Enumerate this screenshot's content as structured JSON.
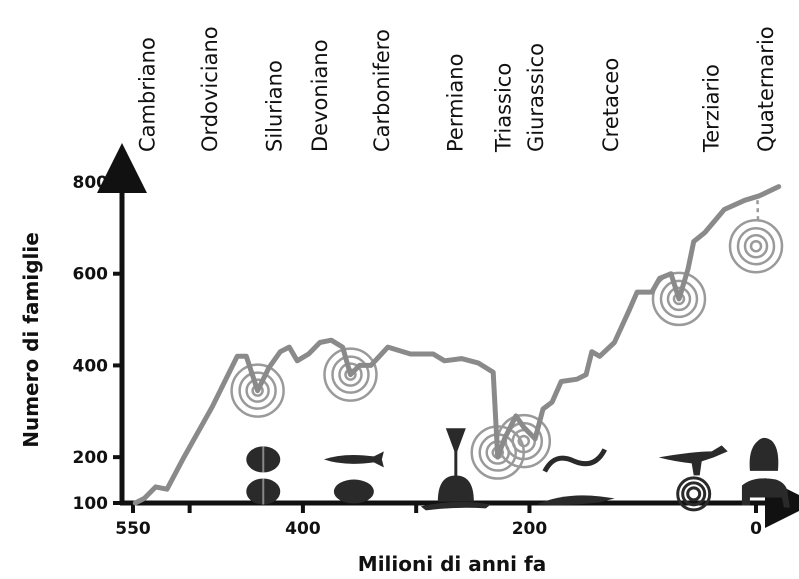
{
  "chart_data": {
    "type": "line",
    "title": "",
    "xlabel": "Milioni di anni fa",
    "ylabel": "Numero di famiglie",
    "x_reversed": true,
    "xlim": [
      560,
      -15
    ],
    "ylim": [
      100,
      830
    ],
    "x_ticks": [
      {
        "value": 550,
        "label": "550"
      },
      {
        "value": 400,
        "label": "400"
      },
      {
        "value": 200,
        "label": "200"
      },
      {
        "value": 0,
        "label": "0"
      }
    ],
    "y_ticks": [
      {
        "value": 800,
        "label": "800"
      },
      {
        "value": 600,
        "label": "600"
      },
      {
        "value": 400,
        "label": "400"
      },
      {
        "value": 200,
        "label": "200"
      },
      {
        "value": 100,
        "label": "100"
      }
    ],
    "periods": [
      {
        "name": "Cambriano",
        "at": 538
      },
      {
        "name": "Ordoviciano",
        "at": 483
      },
      {
        "name": "Siluriano",
        "at": 426
      },
      {
        "name": "Devoniano",
        "at": 386
      },
      {
        "name": "Carbonifero",
        "at": 331
      },
      {
        "name": "Permiano",
        "at": 266
      },
      {
        "name": "Triassico",
        "at": 224
      },
      {
        "name": "Giurassico",
        "at": 195
      },
      {
        "name": "Cretaceo",
        "at": 129
      },
      {
        "name": "Terziario",
        "at": 40
      },
      {
        "name": "Quaternario",
        "at": -8
      }
    ],
    "series": [
      {
        "color": "#8a8a8a",
        "points": [
          [
            548,
            100
          ],
          [
            540,
            110
          ],
          [
            530,
            135
          ],
          [
            520,
            130
          ],
          [
            505,
            200
          ],
          [
            480,
            310
          ],
          [
            458,
            420
          ],
          [
            450,
            420
          ],
          [
            440,
            345
          ],
          [
            430,
            395
          ],
          [
            420,
            430
          ],
          [
            412,
            440
          ],
          [
            405,
            410
          ],
          [
            395,
            425
          ],
          [
            385,
            450
          ],
          [
            375,
            455
          ],
          [
            365,
            440
          ],
          [
            358,
            380
          ],
          [
            350,
            400
          ],
          [
            340,
            400
          ],
          [
            325,
            440
          ],
          [
            305,
            425
          ],
          [
            285,
            425
          ],
          [
            275,
            410
          ],
          [
            260,
            415
          ],
          [
            245,
            405
          ],
          [
            232,
            385
          ],
          [
            228,
            200
          ],
          [
            222,
            240
          ],
          [
            212,
            290
          ],
          [
            205,
            265
          ],
          [
            195,
            240
          ],
          [
            188,
            305
          ],
          [
            180,
            320
          ],
          [
            172,
            365
          ],
          [
            158,
            370
          ],
          [
            150,
            380
          ],
          [
            145,
            430
          ],
          [
            138,
            420
          ],
          [
            125,
            450
          ],
          [
            112,
            520
          ],
          [
            105,
            560
          ],
          [
            92,
            560
          ],
          [
            85,
            590
          ],
          [
            75,
            600
          ],
          [
            68,
            545
          ],
          [
            60,
            610
          ],
          [
            55,
            670
          ],
          [
            45,
            690
          ],
          [
            28,
            740
          ],
          [
            10,
            760
          ],
          [
            -3,
            770
          ],
          [
            -20,
            790
          ]
        ]
      }
    ],
    "extinction_markers": [
      {
        "x": 440,
        "y": 345
      },
      {
        "x": 358,
        "y": 380
      },
      {
        "x": 228,
        "y": 210
      },
      {
        "x": 205,
        "y": 235
      },
      {
        "x": 68,
        "y": 545
      },
      {
        "x": 0,
        "y": 660
      }
    ],
    "organism_icons": [
      {
        "name": "trilobite",
        "x": 435,
        "y": 195
      },
      {
        "name": "trilobite",
        "x": 435,
        "y": 125
      },
      {
        "name": "fish",
        "x": 355,
        "y": 195
      },
      {
        "name": "armored-fish",
        "x": 355,
        "y": 125
      },
      {
        "name": "crinoid",
        "x": 265,
        "y": 215
      },
      {
        "name": "sponge",
        "x": 265,
        "y": 125
      },
      {
        "name": "dimetrodon",
        "x": 265,
        "y": 110
      },
      {
        "name": "plesiosaur",
        "x": 160,
        "y": 195
      },
      {
        "name": "crocodile",
        "x": 160,
        "y": 110
      },
      {
        "name": "theropod",
        "x": 55,
        "y": 195
      },
      {
        "name": "ammonite",
        "x": 55,
        "y": 120
      },
      {
        "name": "gorilla",
        "x": -7,
        "y": 205
      },
      {
        "name": "mammoth",
        "x": -7,
        "y": 125
      }
    ],
    "grid": false,
    "legend": "none"
  }
}
